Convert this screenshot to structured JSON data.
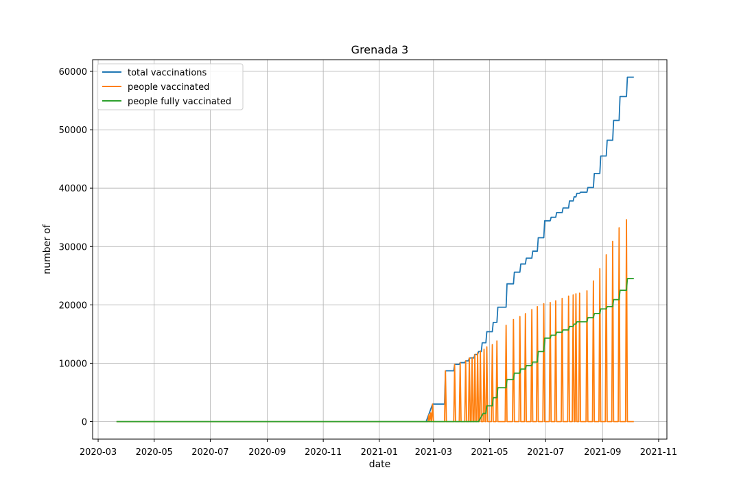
{
  "chart_data": {
    "type": "line",
    "title": "Grenada 3",
    "xlabel": "date",
    "ylabel": "number of",
    "xlim": [
      "2020-02-24",
      "2021-11-10"
    ],
    "ylim": [
      -3000,
      62000
    ],
    "grid": true,
    "legend_position": "top-left",
    "xticks": [
      "2020-03",
      "2020-05",
      "2020-07",
      "2020-09",
      "2020-11",
      "2021-01",
      "2021-03",
      "2021-05",
      "2021-07",
      "2021-09",
      "2021-11"
    ],
    "yticks": [
      0,
      10000,
      20000,
      30000,
      40000,
      50000,
      60000
    ],
    "series": [
      {
        "name": "total vaccinations",
        "color": "#1f77b4",
        "style": "step",
        "points": [
          [
            "2020-03-21",
            0
          ],
          [
            "2021-02-21",
            0
          ],
          [
            "2021-02-28",
            3000
          ],
          [
            "2021-03-13",
            3000
          ],
          [
            "2021-03-14",
            8700
          ],
          [
            "2021-03-23",
            8700
          ],
          [
            "2021-03-24",
            9800
          ],
          [
            "2021-03-29",
            9800
          ],
          [
            "2021-03-30",
            10100
          ],
          [
            "2021-04-04",
            10100
          ],
          [
            "2021-04-05",
            10400
          ],
          [
            "2021-04-08",
            10400
          ],
          [
            "2021-04-09",
            10900
          ],
          [
            "2021-04-14",
            10900
          ],
          [
            "2021-04-15",
            11500
          ],
          [
            "2021-04-18",
            11500
          ],
          [
            "2021-04-19",
            12000
          ],
          [
            "2021-04-22",
            12000
          ],
          [
            "2021-04-23",
            13500
          ],
          [
            "2021-04-27",
            13500
          ],
          [
            "2021-04-28",
            15400
          ],
          [
            "2021-05-04",
            15400
          ],
          [
            "2021-05-05",
            17000
          ],
          [
            "2021-05-09",
            17000
          ],
          [
            "2021-05-10",
            19600
          ],
          [
            "2021-05-19",
            19600
          ],
          [
            "2021-05-20",
            23600
          ],
          [
            "2021-05-27",
            23600
          ],
          [
            "2021-05-28",
            25600
          ],
          [
            "2021-06-03",
            25600
          ],
          [
            "2021-06-04",
            27000
          ],
          [
            "2021-06-09",
            27000
          ],
          [
            "2021-06-10",
            28000
          ],
          [
            "2021-06-16",
            28000
          ],
          [
            "2021-06-17",
            29200
          ],
          [
            "2021-06-22",
            29200
          ],
          [
            "2021-06-23",
            31500
          ],
          [
            "2021-06-29",
            31500
          ],
          [
            "2021-06-30",
            34400
          ],
          [
            "2021-07-06",
            34400
          ],
          [
            "2021-07-07",
            35000
          ],
          [
            "2021-07-12",
            35000
          ],
          [
            "2021-07-13",
            35800
          ],
          [
            "2021-07-19",
            35800
          ],
          [
            "2021-07-20",
            36600
          ],
          [
            "2021-07-26",
            36600
          ],
          [
            "2021-07-27",
            37800
          ],
          [
            "2021-07-31",
            37800
          ],
          [
            "2021-08-01",
            38500
          ],
          [
            "2021-08-03",
            38500
          ],
          [
            "2021-08-04",
            39100
          ],
          [
            "2021-08-07",
            39100
          ],
          [
            "2021-08-08",
            39300
          ],
          [
            "2021-08-15",
            39300
          ],
          [
            "2021-08-16",
            40100
          ],
          [
            "2021-08-22",
            40100
          ],
          [
            "2021-08-23",
            42500
          ],
          [
            "2021-08-29",
            42500
          ],
          [
            "2021-08-30",
            45500
          ],
          [
            "2021-09-05",
            45500
          ],
          [
            "2021-09-06",
            48200
          ],
          [
            "2021-09-12",
            48200
          ],
          [
            "2021-09-13",
            51600
          ],
          [
            "2021-09-19",
            51600
          ],
          [
            "2021-09-20",
            55700
          ],
          [
            "2021-09-27",
            55700
          ],
          [
            "2021-09-28",
            59000
          ],
          [
            "2021-10-05",
            59000
          ]
        ]
      },
      {
        "name": "people vaccinated",
        "color": "#ff7f0e",
        "style": "line",
        "baseline": [
          "2020-03-21",
          "2021-10-05"
        ],
        "spikes": [
          [
            "2021-02-24",
            1200
          ],
          [
            "2021-02-26",
            1500
          ],
          [
            "2021-02-28",
            3000
          ],
          [
            "2021-03-14",
            8700
          ],
          [
            "2021-03-24",
            9800
          ],
          [
            "2021-03-30",
            10100
          ],
          [
            "2021-04-05",
            10400
          ],
          [
            "2021-04-09",
            10900
          ],
          [
            "2021-04-12",
            11000
          ],
          [
            "2021-04-15",
            11500
          ],
          [
            "2021-04-18",
            11800
          ],
          [
            "2021-04-21",
            12100
          ],
          [
            "2021-04-25",
            12400
          ],
          [
            "2021-04-28",
            12800
          ],
          [
            "2021-05-04",
            13200
          ],
          [
            "2021-05-09",
            13800
          ],
          [
            "2021-05-19",
            16500
          ],
          [
            "2021-05-27",
            17500
          ],
          [
            "2021-06-03",
            18000
          ],
          [
            "2021-06-09",
            18500
          ],
          [
            "2021-06-16",
            19200
          ],
          [
            "2021-06-22",
            19700
          ],
          [
            "2021-06-29",
            20200
          ],
          [
            "2021-07-06",
            20400
          ],
          [
            "2021-07-12",
            20700
          ],
          [
            "2021-07-19",
            21100
          ],
          [
            "2021-07-26",
            21500
          ],
          [
            "2021-07-31",
            21700
          ],
          [
            "2021-08-03",
            21900
          ],
          [
            "2021-08-07",
            22000
          ],
          [
            "2021-08-15",
            22400
          ],
          [
            "2021-08-22",
            24100
          ],
          [
            "2021-08-29",
            26200
          ],
          [
            "2021-09-05",
            28600
          ],
          [
            "2021-09-12",
            30900
          ],
          [
            "2021-09-19",
            33200
          ],
          [
            "2021-09-27",
            34600
          ]
        ]
      },
      {
        "name": "people fully vaccinated",
        "color": "#2ca02c",
        "style": "step",
        "points": [
          [
            "2020-03-21",
            0
          ],
          [
            "2021-04-19",
            0
          ],
          [
            "2021-04-24",
            1400
          ],
          [
            "2021-04-27",
            1400
          ],
          [
            "2021-04-28",
            2700
          ],
          [
            "2021-05-04",
            2700
          ],
          [
            "2021-05-05",
            4100
          ],
          [
            "2021-05-09",
            4100
          ],
          [
            "2021-05-10",
            5800
          ],
          [
            "2021-05-19",
            5800
          ],
          [
            "2021-05-20",
            7200
          ],
          [
            "2021-05-27",
            7200
          ],
          [
            "2021-05-28",
            8300
          ],
          [
            "2021-06-03",
            8300
          ],
          [
            "2021-06-04",
            9000
          ],
          [
            "2021-06-09",
            9000
          ],
          [
            "2021-06-10",
            9600
          ],
          [
            "2021-06-16",
            9600
          ],
          [
            "2021-06-17",
            10200
          ],
          [
            "2021-06-22",
            10200
          ],
          [
            "2021-06-23",
            12000
          ],
          [
            "2021-06-29",
            12000
          ],
          [
            "2021-06-30",
            14300
          ],
          [
            "2021-07-06",
            14300
          ],
          [
            "2021-07-07",
            14800
          ],
          [
            "2021-07-12",
            14800
          ],
          [
            "2021-07-13",
            15300
          ],
          [
            "2021-07-19",
            15300
          ],
          [
            "2021-07-20",
            15700
          ],
          [
            "2021-07-26",
            15700
          ],
          [
            "2021-07-27",
            16300
          ],
          [
            "2021-07-31",
            16300
          ],
          [
            "2021-08-01",
            16700
          ],
          [
            "2021-08-03",
            16700
          ],
          [
            "2021-08-04",
            17100
          ],
          [
            "2021-08-15",
            17100
          ],
          [
            "2021-08-16",
            17800
          ],
          [
            "2021-08-22",
            17800
          ],
          [
            "2021-08-23",
            18500
          ],
          [
            "2021-08-29",
            18500
          ],
          [
            "2021-08-30",
            19300
          ],
          [
            "2021-09-05",
            19300
          ],
          [
            "2021-09-06",
            19700
          ],
          [
            "2021-09-12",
            19700
          ],
          [
            "2021-09-13",
            20900
          ],
          [
            "2021-09-19",
            20900
          ],
          [
            "2021-09-20",
            22500
          ],
          [
            "2021-09-27",
            22500
          ],
          [
            "2021-09-28",
            24500
          ],
          [
            "2021-10-05",
            24500
          ]
        ]
      }
    ]
  }
}
